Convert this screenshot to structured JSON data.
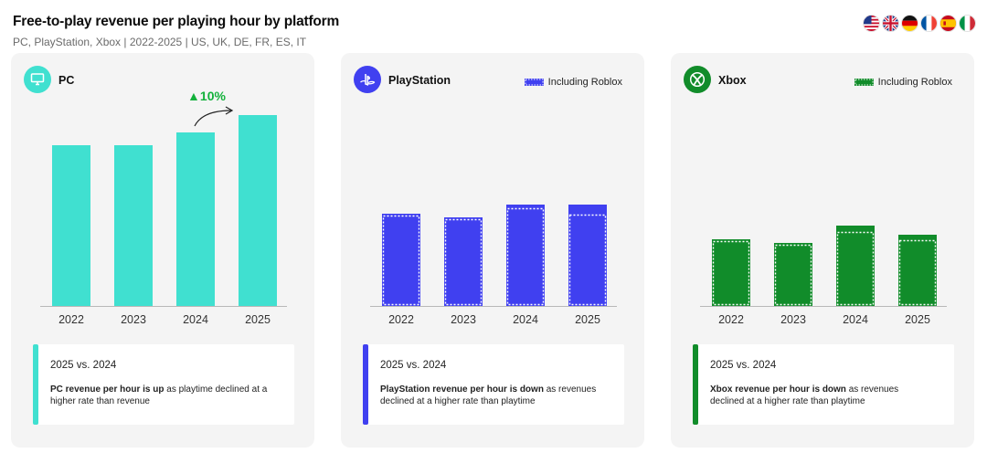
{
  "header": {
    "title": "Free-to-play revenue per playing hour by platform",
    "subtitle": "PC, PlayStation, Xbox | 2022-2025 | US, UK, DE, FR, ES, IT"
  },
  "flags": [
    "us-flag-icon",
    "uk-flag-icon",
    "germany-flag-icon",
    "france-flag-icon",
    "spain-flag-icon",
    "italy-flag-icon"
  ],
  "panels": [
    {
      "name": "PC",
      "icon": "monitor-icon",
      "color": "#40E0D0",
      "note": {
        "heading": "2025 vs. 2024",
        "emphasis": "PC revenue per hour is up",
        "rest": " as playtime declined at a higher rate than revenue"
      }
    },
    {
      "name": "PlayStation",
      "icon": "playstation-logo-icon",
      "color": "#4040F0",
      "legend": "Including Roblox",
      "note": {
        "heading": "2025 vs. 2024",
        "emphasis": "PlayStation revenue per hour is down",
        "rest": " as revenues declined at a higher rate than playtime"
      }
    },
    {
      "name": "Xbox",
      "icon": "xbox-logo-icon",
      "color": "#118C2A",
      "legend": "Including Roblox",
      "note": {
        "heading": "2025 vs. 2024",
        "emphasis": "Xbox revenue per hour is down",
        "rest": " as revenues declined at a higher rate than playtime"
      }
    }
  ],
  "chart_data": [
    {
      "type": "bar",
      "platform": "PC",
      "categories": [
        "2022",
        "2023",
        "2024",
        "2025"
      ],
      "values": [
        176,
        176,
        190,
        209
      ],
      "annotation": {
        "text": "▲10%",
        "from": "2024",
        "to": "2025",
        "color": "#13B13B"
      },
      "title": "",
      "xlabel": "",
      "ylabel": "",
      "ylim": [
        0,
        220
      ],
      "grid": false
    },
    {
      "type": "bar",
      "platform": "PlayStation",
      "categories": [
        "2022",
        "2023",
        "2024",
        "2025"
      ],
      "series": [
        {
          "name": "",
          "values": [
            100,
            96,
            108,
            101
          ]
        },
        {
          "name": "Including Roblox",
          "values": [
            101,
            97,
            111,
            111
          ]
        }
      ],
      "legend_position": "top-right",
      "title": "",
      "xlabel": "",
      "ylabel": "",
      "ylim": [
        0,
        220
      ],
      "grid": false
    },
    {
      "type": "bar",
      "platform": "Xbox",
      "categories": [
        "2022",
        "2023",
        "2024",
        "2025"
      ],
      "series": [
        {
          "name": "",
          "values": [
            72,
            68,
            82,
            73
          ]
        },
        {
          "name": "Including Roblox",
          "values": [
            73,
            69,
            88,
            78
          ]
        }
      ],
      "legend_position": "top-right",
      "title": "",
      "xlabel": "",
      "ylabel": "",
      "ylim": [
        0,
        220
      ],
      "grid": false
    }
  ]
}
